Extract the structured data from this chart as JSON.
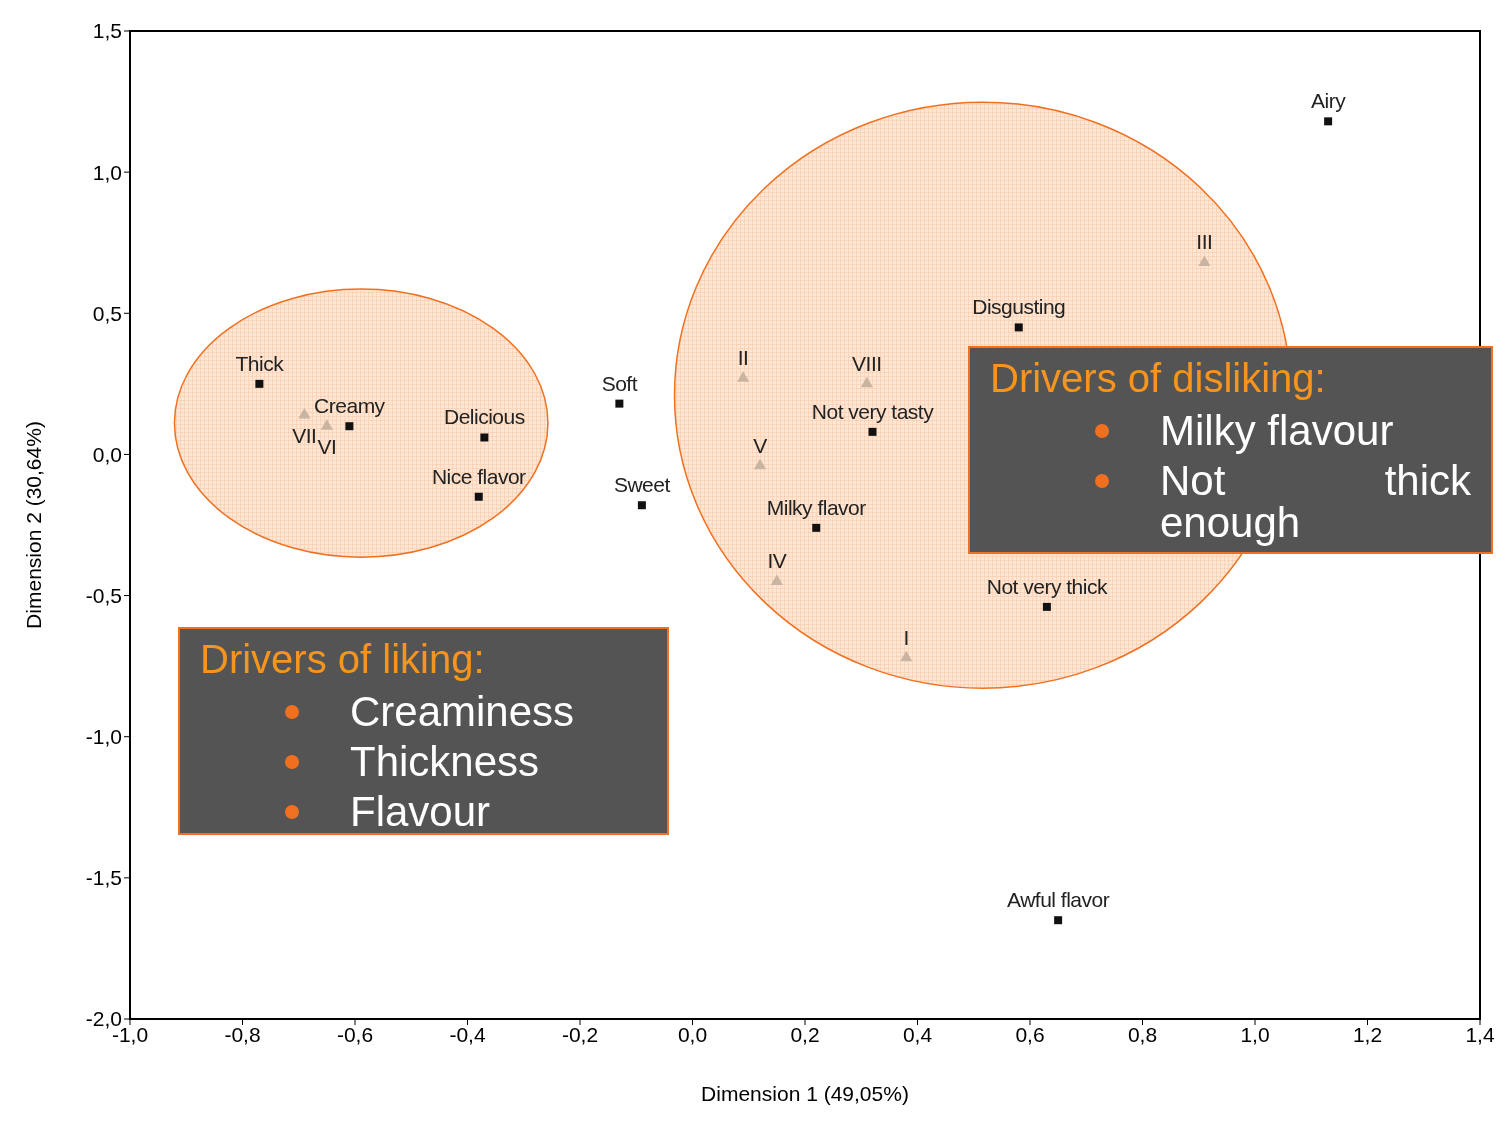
{
  "chart_data": {
    "type": "scatter",
    "xlabel": "Dimension 1 (49,05%)",
    "ylabel": "Dimension 2 (30,64%)",
    "xlim": [
      -1.0,
      1.4
    ],
    "xticks": [
      {
        "value": -1.0,
        "label": "-1,0"
      },
      {
        "value": -0.8,
        "label": "-0,8"
      },
      {
        "value": -0.6,
        "label": "-0,6"
      },
      {
        "value": -0.4,
        "label": "-0,4"
      },
      {
        "value": -0.2,
        "label": "-0,2"
      },
      {
        "value": 0,
        "label": "0,0"
      },
      {
        "value": 0.2,
        "label": "0,2"
      },
      {
        "value": 0.4,
        "label": "0,4"
      },
      {
        "value": 0.6,
        "label": "0,6"
      },
      {
        "value": 0.8,
        "label": "0,8"
      },
      {
        "value": 1.0,
        "label": "1,0"
      },
      {
        "value": 1.2,
        "label": "1,2"
      },
      {
        "value": 1.4,
        "label": "1,4"
      }
    ],
    "ylim": [
      -2.0,
      1.5
    ],
    "yticks": [
      {
        "value": -2.0,
        "label": "-2,0"
      },
      {
        "value": -1.5,
        "label": "-1,5"
      },
      {
        "value": -1.0,
        "label": "-1,0"
      },
      {
        "value": -0.5,
        "label": "-0,5"
      },
      {
        "value": 0,
        "label": "0,0"
      },
      {
        "value": 0.5,
        "label": "0,5"
      },
      {
        "value": 1.0,
        "label": "1,0"
      },
      {
        "value": 1.5,
        "label": "1,5"
      }
    ],
    "series": [
      {
        "color": "#111111",
        "marker": "square",
        "x": [
          -0.77,
          -0.61,
          -0.37,
          -0.38,
          -0.13,
          -0.09,
          0.58,
          0.32,
          0.22,
          0.63,
          1.13,
          0.65
        ],
        "values": [
          0.25,
          0.1,
          0.06,
          -0.15,
          0.18,
          -0.18,
          0.45,
          0.08,
          -0.26,
          -0.54,
          1.18,
          -1.65
        ]
      },
      {
        "color": "#c8b4a0",
        "marker": "triangle",
        "x": [
          -0.69,
          -0.65,
          0.09,
          0.31,
          0.12,
          0.15,
          0.38,
          0.91
        ],
        "values": [
          0.14,
          0.1,
          0.27,
          0.25,
          -0.04,
          -0.45,
          -0.72,
          0.68
        ]
      }
    ],
    "annotations": [
      {
        "text": "Thick",
        "x": -0.77,
        "y": 0.25
      },
      {
        "text": "Creamy",
        "x": -0.61,
        "y": 0.1
      },
      {
        "text": "Delicious",
        "x": -0.37,
        "y": 0.06
      },
      {
        "text": "Nice flavor",
        "x": -0.38,
        "y": -0.15
      },
      {
        "text": "Soft",
        "x": -0.13,
        "y": 0.18
      },
      {
        "text": "Sweet",
        "x": -0.09,
        "y": -0.18
      },
      {
        "text": "Disgusting",
        "x": 0.58,
        "y": 0.45
      },
      {
        "text": "Not very tasty",
        "x": 0.32,
        "y": 0.08
      },
      {
        "text": "Milky flavor",
        "x": 0.22,
        "y": -0.26
      },
      {
        "text": "Not very thick",
        "x": 0.63,
        "y": -0.54
      },
      {
        "text": "Airy",
        "x": 1.13,
        "y": 1.18
      },
      {
        "text": "Awful flavor",
        "x": 0.65,
        "y": -1.65
      },
      {
        "text": "VII",
        "x": -0.69,
        "y": 0.14
      },
      {
        "text": "VI",
        "x": -0.65,
        "y": 0.1
      },
      {
        "text": "II",
        "x": 0.09,
        "y": 0.27
      },
      {
        "text": "VIII",
        "x": 0.31,
        "y": 0.25
      },
      {
        "text": "V",
        "x": 0.12,
        "y": -0.04
      },
      {
        "text": "IV",
        "x": 0.15,
        "y": -0.45
      },
      {
        "text": "I",
        "x": 0.38,
        "y": -0.72
      },
      {
        "text": "III",
        "x": 0.91,
        "y": 0.68
      },
      "Drivers of liking:\nCreaminess\nThickness\nFlavour",
      "Drivers of disliking:\nMilky flavour\nNot thick enough"
    ]
  }
}
